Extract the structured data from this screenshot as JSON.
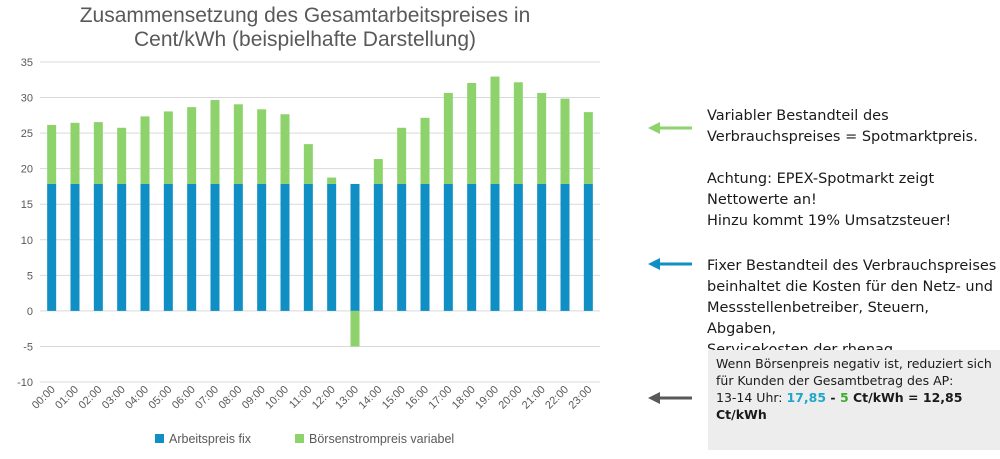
{
  "chart_data": {
    "type": "bar",
    "stacked": true,
    "title_line1": "Zusammensetzung des Gesamtarbeitspreises in",
    "title_line2": "Cent/kWh (beispielhafte Darstellung)",
    "categories": [
      "00:00",
      "01:00",
      "02:00",
      "03:00",
      "04:00",
      "05:00",
      "06:00",
      "07:00",
      "08:00",
      "09:00",
      "10:00",
      "11:00",
      "12:00",
      "13:00",
      "14:00",
      "15:00",
      "16:00",
      "17:00",
      "18:00",
      "19:00",
      "20:00",
      "21:00",
      "22:00",
      "23:00"
    ],
    "series": [
      {
        "name": "Arbeitspreis fix",
        "color": "#0f8fc4",
        "values": [
          17.85,
          17.85,
          17.85,
          17.85,
          17.85,
          17.85,
          17.85,
          17.85,
          17.85,
          17.85,
          17.85,
          17.85,
          17.85,
          17.85,
          17.85,
          17.85,
          17.85,
          17.85,
          17.85,
          17.85,
          17.85,
          17.85,
          17.85,
          17.85
        ]
      },
      {
        "name": "Börsenstrompreis variabel",
        "color": "#8dd26b",
        "values": [
          8.3,
          8.6,
          8.7,
          7.9,
          9.5,
          10.2,
          10.8,
          11.8,
          11.2,
          10.5,
          9.8,
          5.6,
          0.9,
          -5,
          3.5,
          7.9,
          9.3,
          12.8,
          14.2,
          15.1,
          14.3,
          12.8,
          12.0,
          10.1
        ]
      }
    ],
    "ylim": [
      -10,
      35
    ],
    "yticks": [
      -10,
      -5,
      0,
      5,
      10,
      15,
      20,
      25,
      30,
      35
    ],
    "grid": true,
    "legend_position": "bottom"
  },
  "annotations": {
    "variable": {
      "line1": "Variabler Bestandteil des",
      "line2": "Verbrauchspreises = Spotmarktpreis.",
      "line3": "Achtung: EPEX-Spotmarkt zeigt",
      "line4": "Nettowerte an!",
      "line5": "Hinzu kommt 19% Umsatzsteuer!"
    },
    "fixed": {
      "line1": "Fixer Bestandteil des Verbrauchspreises",
      "line2": "beinhaltet die Kosten für den Netz- und",
      "line3": "Messstellenbetreiber, Steuern, Abgaben,",
      "line4": "Servicekosten der rhenag"
    },
    "negative": {
      "line1": "Wenn Börsenpreis negativ ist, reduziert sich",
      "line2": "für Kunden der Gesamtbetrag des AP:",
      "prefix": "13-14 Uhr: ",
      "fixed_value": "17,85",
      "minus": " - ",
      "variable_value": "5",
      "suffix": " Ct/kWh = 12,85 Ct/kWh"
    }
  },
  "colors": {
    "arrow_green": "#8dd26b",
    "arrow_blue": "#0f8fc4",
    "arrow_gray": "#595959"
  }
}
